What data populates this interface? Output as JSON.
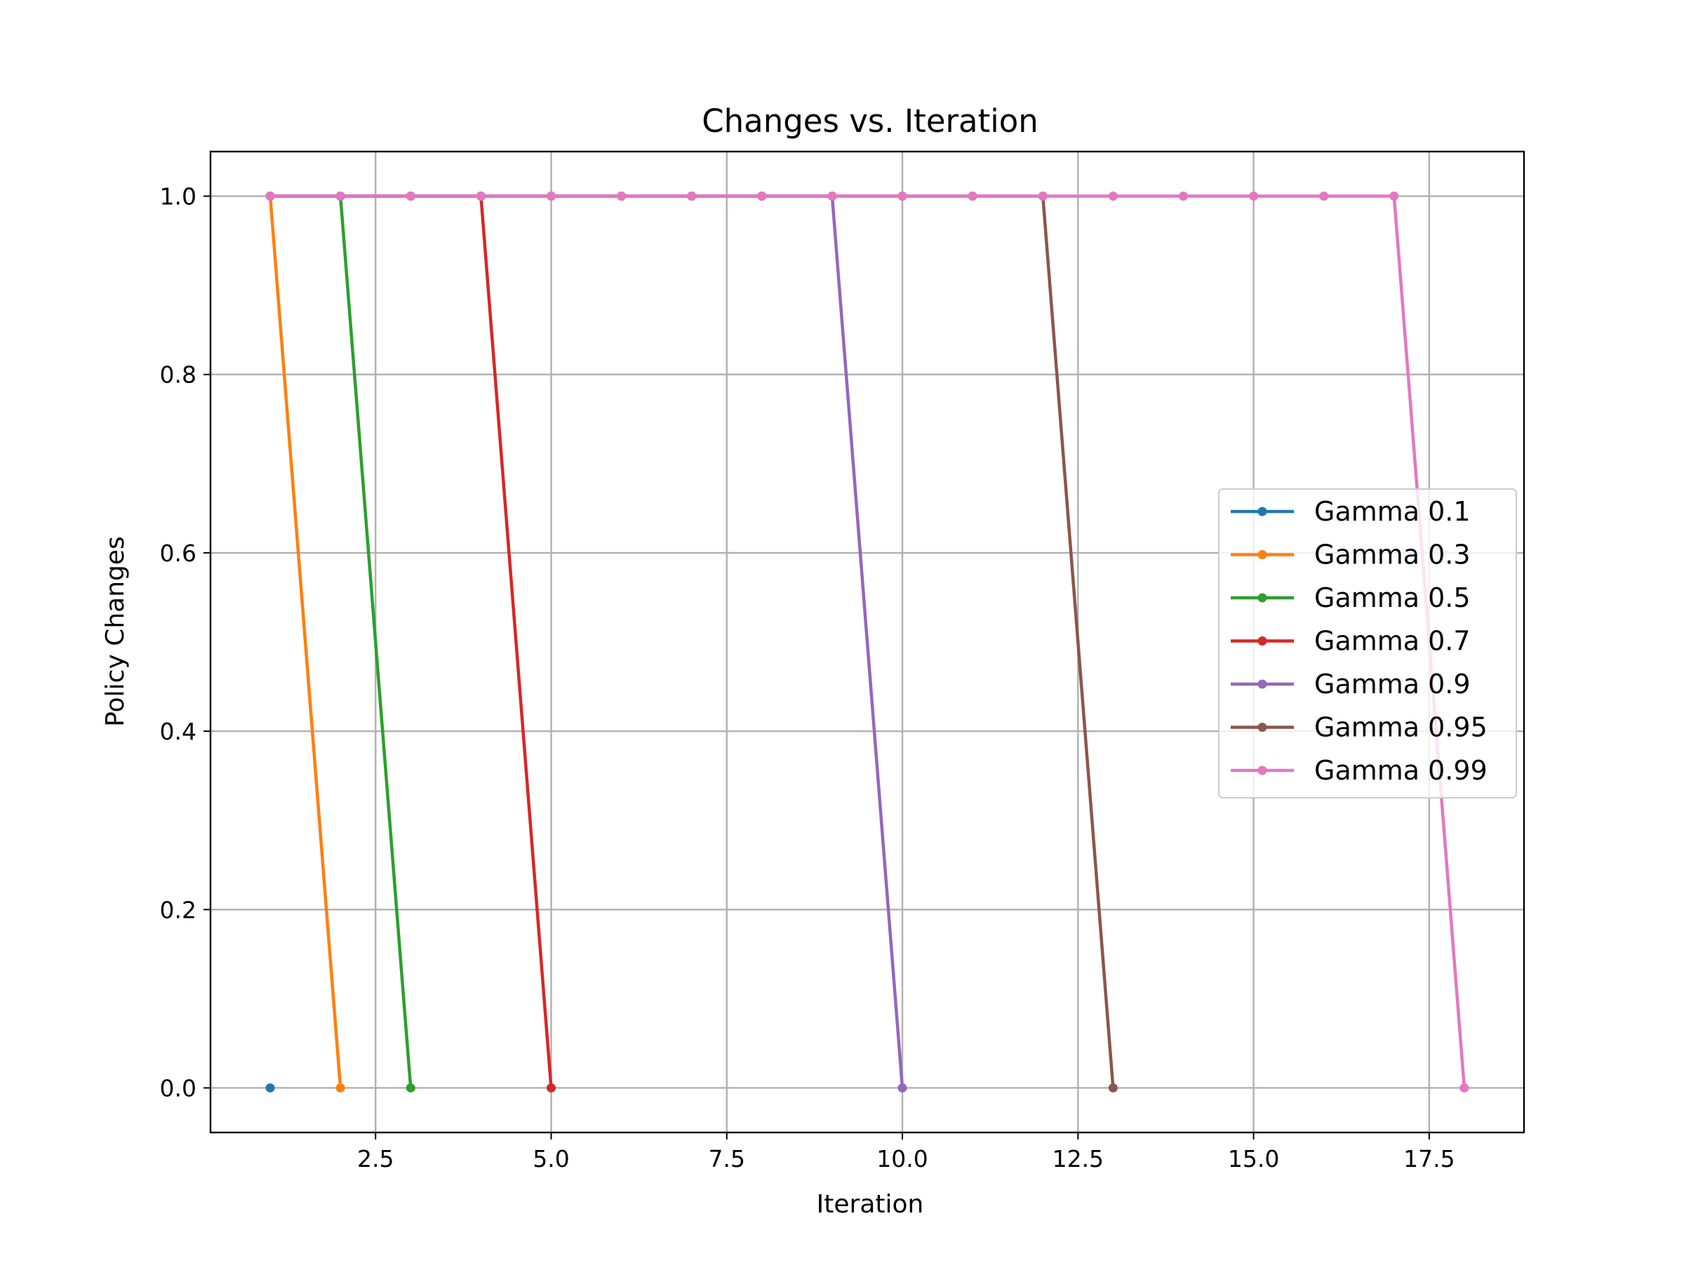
{
  "chart_data": {
    "type": "line",
    "title": "Changes vs. Iteration",
    "xlabel": "Iteration",
    "ylabel": "Policy Changes",
    "xlim": [
      0.15,
      18.85
    ],
    "ylim": [
      -0.05,
      1.05
    ],
    "xticks": [
      2.5,
      5.0,
      7.5,
      10.0,
      12.5,
      15.0,
      17.5
    ],
    "xtick_labels": [
      "2.5",
      "5.0",
      "7.5",
      "10.0",
      "12.5",
      "15.0",
      "17.5"
    ],
    "yticks": [
      0.0,
      0.2,
      0.4,
      0.6,
      0.8,
      1.0
    ],
    "ytick_labels": [
      "0.0",
      "0.2",
      "0.4",
      "0.6",
      "0.8",
      "1.0"
    ],
    "grid": true,
    "legend_position": "center-right",
    "series": [
      {
        "name": "Gamma 0.1",
        "color": "#1f77b4",
        "x": [
          1
        ],
        "y": [
          0
        ]
      },
      {
        "name": "Gamma 0.3",
        "color": "#ff7f0e",
        "x": [
          1,
          2
        ],
        "y": [
          1,
          0
        ]
      },
      {
        "name": "Gamma 0.5",
        "color": "#2ca02c",
        "x": [
          1,
          2,
          3
        ],
        "y": [
          1,
          1,
          0
        ]
      },
      {
        "name": "Gamma 0.7",
        "color": "#d62728",
        "x": [
          1,
          2,
          3,
          4,
          5
        ],
        "y": [
          1,
          1,
          1,
          1,
          0
        ]
      },
      {
        "name": "Gamma 0.9",
        "color": "#9467bd",
        "x": [
          1,
          2,
          3,
          4,
          5,
          6,
          7,
          8,
          9,
          10
        ],
        "y": [
          1,
          1,
          1,
          1,
          1,
          1,
          1,
          1,
          1,
          0
        ]
      },
      {
        "name": "Gamma 0.95",
        "color": "#8c564b",
        "x": [
          1,
          2,
          3,
          4,
          5,
          6,
          7,
          8,
          9,
          10,
          11,
          12,
          13
        ],
        "y": [
          1,
          1,
          1,
          1,
          1,
          1,
          1,
          1,
          1,
          1,
          1,
          1,
          0
        ]
      },
      {
        "name": "Gamma 0.99",
        "color": "#e377c2",
        "x": [
          1,
          2,
          3,
          4,
          5,
          6,
          7,
          8,
          9,
          10,
          11,
          12,
          13,
          14,
          15,
          16,
          17,
          18
        ],
        "y": [
          1,
          1,
          1,
          1,
          1,
          1,
          1,
          1,
          1,
          1,
          1,
          1,
          1,
          1,
          1,
          1,
          1,
          0
        ]
      }
    ]
  }
}
